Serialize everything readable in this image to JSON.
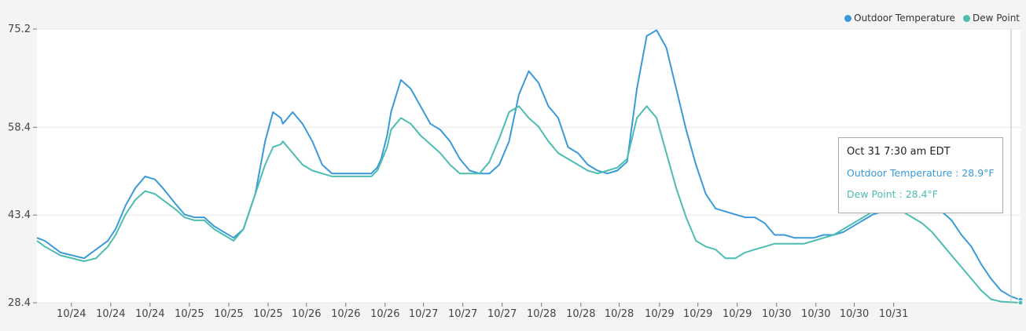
{
  "legend": {
    "outdoor_label": "Outdoor Temperature",
    "dew_label": "Dew Point"
  },
  "tooltip": {
    "title": "Oct 31 7:30 am EDT",
    "outdoor_text": "Outdoor Temperature : 28.9°F",
    "dew_text": "Dew Point : 28.4°F"
  },
  "chart_data": {
    "type": "line",
    "title": "",
    "xlabel": "",
    "ylabel": "",
    "y_ticks": [
      75.2,
      58.4,
      43.4,
      28.4
    ],
    "ylim": [
      28.4,
      75.2
    ],
    "x_tick_labels": [
      "10/24",
      "10/24",
      "10/24",
      "10/25",
      "10/25",
      "10/25",
      "10/26",
      "10/26",
      "10/26",
      "10/27",
      "10/27",
      "10/27",
      "10/28",
      "10/28",
      "10/28",
      "10/29",
      "10/29",
      "10/29",
      "10/30",
      "10/30",
      "10/30",
      "10/31"
    ],
    "x_index_range": [
      0,
      100
    ],
    "x_tick_positions": [
      3.5,
      7.5,
      11.5,
      15.5,
      19.5,
      23.5,
      27.4,
      31.4,
      35.4,
      39.3,
      43.3,
      47.3,
      51.3,
      55.3,
      59.2,
      63.3,
      67.2,
      71.2,
      75.2,
      79.2,
      83.1,
      87.1
    ],
    "grid": true,
    "legend_position": "top-right",
    "series": [
      {
        "name": "Outdoor Temperature",
        "color": "#3a9ad9",
        "x": [
          0,
          0.8,
          2.4,
          4.8,
          6,
          7.2,
          8,
          9,
          10,
          11,
          12,
          12.8,
          14,
          15,
          16,
          17,
          18,
          19,
          20,
          21,
          22.2,
          23.2,
          24,
          24.8,
          25,
          26,
          27,
          28,
          29,
          30,
          31,
          32,
          33,
          34,
          34.6,
          35,
          35.6,
          36,
          37,
          38,
          39,
          40,
          41,
          42,
          43,
          44,
          45,
          46,
          47,
          48,
          49,
          50,
          51,
          52,
          53,
          54,
          55,
          56,
          57,
          58,
          59,
          60,
          61,
          62,
          63,
          64,
          65,
          66,
          67,
          68,
          69,
          70,
          71,
          72,
          73,
          74,
          75,
          76,
          77,
          78,
          79,
          80,
          81,
          82,
          83,
          84,
          85,
          86,
          87,
          88,
          89,
          90,
          91,
          92,
          93,
          94,
          95,
          96,
          97,
          98,
          99,
          100
        ],
        "y": [
          39.5,
          39.0,
          37.0,
          36.0,
          37.5,
          39.0,
          41.0,
          45.0,
          48.0,
          50.0,
          49.5,
          48.0,
          45.5,
          43.5,
          43.0,
          43.0,
          41.5,
          40.5,
          39.5,
          41.0,
          47.0,
          56.0,
          61.0,
          60.0,
          59.0,
          61.0,
          59.0,
          56.0,
          52.0,
          50.5,
          50.5,
          50.5,
          50.5,
          50.5,
          51.5,
          53.0,
          57.0,
          61.0,
          66.5,
          65.0,
          62.0,
          59.0,
          58.0,
          56.0,
          53.0,
          51.0,
          50.5,
          50.5,
          52.0,
          56.0,
          64.0,
          68.0,
          66.0,
          62.0,
          60.0,
          55.0,
          54.0,
          52.0,
          51.0,
          50.5,
          51.0,
          52.5,
          65.0,
          74.0,
          75.0,
          72.0,
          65.0,
          58.0,
          52.0,
          47.0,
          44.5,
          44.0,
          43.5,
          43.0,
          43.0,
          42.0,
          40.0,
          40.0,
          39.5,
          39.5,
          39.5,
          40.0,
          40.0,
          40.5,
          41.5,
          42.5,
          43.5,
          44.0,
          45.0,
          46.0,
          46.5,
          46.0,
          45.5,
          44.0,
          42.5,
          40.0,
          38.0,
          35.0,
          32.5,
          30.5,
          29.5,
          28.9
        ]
      },
      {
        "name": "Dew Point",
        "color": "#4dbdb0",
        "x": [
          0,
          0.8,
          2.4,
          4.8,
          6,
          7.2,
          8,
          9,
          10,
          11,
          12,
          12.8,
          14,
          15,
          16,
          17,
          18,
          19,
          20,
          21,
          22.2,
          23.2,
          24,
          24.8,
          25,
          26,
          27,
          28,
          29,
          30,
          31,
          32,
          33,
          34,
          34.6,
          35,
          35.6,
          36,
          37,
          38,
          39,
          40,
          41,
          42,
          43,
          44,
          45,
          46,
          47,
          48,
          49,
          50,
          51,
          52,
          53,
          54,
          55,
          56,
          57,
          58,
          59,
          60,
          61,
          62,
          63,
          64,
          65,
          66,
          67,
          68,
          69,
          70,
          71,
          72,
          73,
          74,
          75,
          76,
          77,
          78,
          79,
          80,
          81,
          82,
          83,
          84,
          85,
          86,
          87,
          88,
          89,
          90,
          91,
          92,
          93,
          94,
          95,
          96,
          97,
          98,
          99,
          100
        ],
        "y": [
          39.0,
          38.0,
          36.5,
          35.5,
          36.0,
          38.0,
          40.0,
          43.5,
          46.0,
          47.5,
          47.0,
          46.0,
          44.5,
          43.0,
          42.5,
          42.5,
          41.0,
          40.0,
          39.0,
          41.0,
          47.0,
          52.0,
          55.0,
          55.5,
          56.0,
          54.0,
          52.0,
          51.0,
          50.5,
          50.0,
          50.0,
          50.0,
          50.0,
          50.0,
          51.0,
          52.5,
          55.0,
          58.0,
          60.0,
          59.0,
          57.0,
          55.5,
          54.0,
          52.0,
          50.5,
          50.5,
          50.5,
          52.5,
          56.5,
          61.0,
          62.0,
          60.0,
          58.5,
          56.0,
          54.0,
          53.0,
          52.0,
          51.0,
          50.5,
          51.0,
          51.5,
          53.0,
          60.0,
          62.0,
          60.0,
          54.0,
          48.0,
          43.0,
          39.0,
          38.0,
          37.5,
          36.0,
          36.0,
          37.0,
          37.5,
          38.0,
          38.5,
          38.5,
          38.5,
          38.5,
          39.0,
          39.5,
          40.0,
          41.0,
          42.0,
          43.0,
          44.0,
          44.5,
          44.5,
          44.0,
          43.0,
          42.0,
          40.5,
          38.5,
          36.5,
          34.5,
          32.5,
          30.5,
          29.0,
          28.6,
          28.5,
          28.4
        ]
      }
    ]
  }
}
